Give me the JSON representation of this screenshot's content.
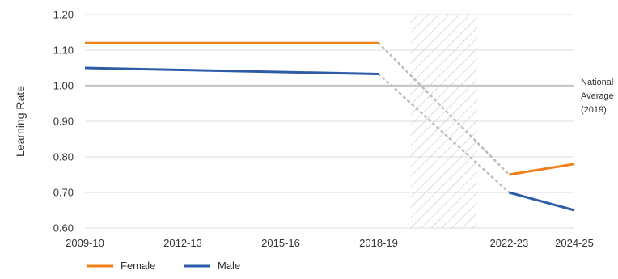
{
  "chart_data": {
    "type": "line",
    "title": "",
    "xlabel": "",
    "ylabel": "Learning Rate",
    "x_ticks": [
      "2009-10",
      "2012-13",
      "2015-16",
      "2018-19",
      "2022-23",
      "2024-25"
    ],
    "y_ticks": [
      "0.60",
      "0.70",
      "0.80",
      "0.90",
      "1.00",
      "1.10",
      "1.20"
    ],
    "ylim": [
      0.6,
      1.2
    ],
    "grid": true,
    "shaded_period": [
      "2019-20",
      "2021-22"
    ],
    "reference_line": {
      "value": 1.0,
      "label": [
        "National",
        "Average",
        "(2019)"
      ]
    },
    "series": [
      {
        "name": "Female",
        "color": "#F07F17",
        "segments": [
          {
            "x": [
              "2009-10",
              "2018-19"
            ],
            "y": [
              1.12,
              1.12
            ]
          },
          {
            "x": [
              "2022-23",
              "2024-25"
            ],
            "y": [
              0.75,
              0.78
            ]
          }
        ],
        "gap_connector": {
          "x": [
            "2018-19",
            "2022-23"
          ],
          "y": [
            1.12,
            0.75
          ]
        }
      },
      {
        "name": "Male",
        "color": "#2E5CA8",
        "segments": [
          {
            "x": [
              "2009-10",
              "2018-19"
            ],
            "y": [
              1.05,
              1.033
            ]
          },
          {
            "x": [
              "2022-23",
              "2024-25"
            ],
            "y": [
              0.7,
              0.65
            ]
          }
        ],
        "gap_connector": {
          "x": [
            "2018-19",
            "2022-23"
          ],
          "y": [
            1.033,
            0.7
          ]
        }
      }
    ],
    "legend": {
      "position": "bottom-left",
      "items": [
        "Female",
        "Male"
      ]
    }
  }
}
